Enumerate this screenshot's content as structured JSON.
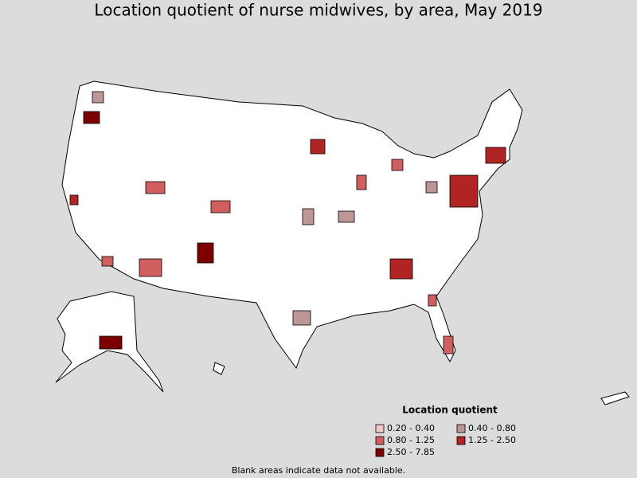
{
  "header": {
    "title": "Location quotient of nurse midwives, by area, May 2019"
  },
  "legend": {
    "title": "Location quotient",
    "items": [
      {
        "label": "0.20 - 0.40",
        "color": "#f3c9c6"
      },
      {
        "label": "0.40 - 0.80",
        "color": "#bf9696"
      },
      {
        "label": "0.80 - 1.25",
        "color": "#d25f5f"
      },
      {
        "label": "1.25 - 2.50",
        "color": "#b02424"
      },
      {
        "label": "2.50 - 7.85",
        "color": "#7d0000"
      }
    ]
  },
  "footnote": "Blank areas indicate data not available."
}
